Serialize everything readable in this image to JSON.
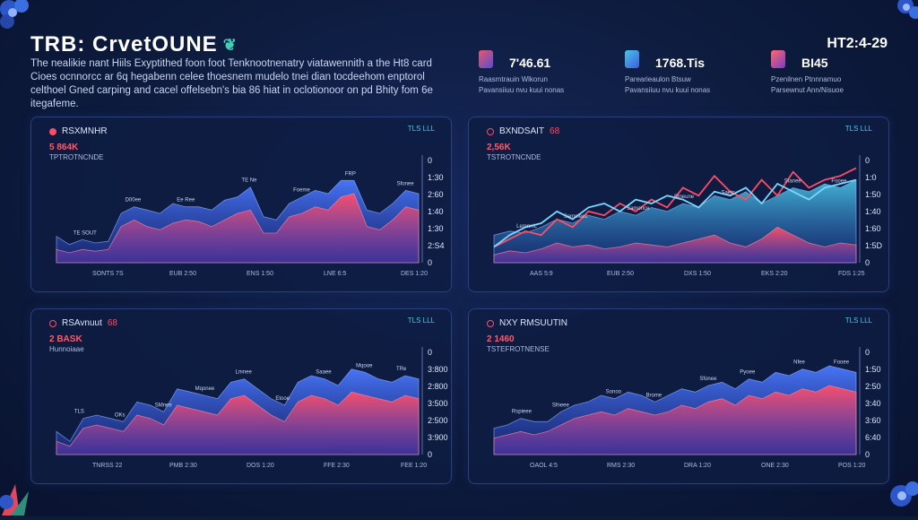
{
  "header": {
    "title": "TRB: CrvetOUNE",
    "topright": "HT2:4-29",
    "subtitle": "The nealikie nant Hiils Exyptithed foon foot Tenknootnenatry viatawennith a the Ht8 card Cioes ocnnorcc ar 6q hegabenn celee thoesnem mudelo tnei dian tocdeehom enptorol celthoel Gned carping and cacel offelsebn's bia 86 hiat in oclotionoor on pd Bhity fom 6e itegafeme."
  },
  "stats": [
    {
      "value": "7'46.61",
      "caption": "Raasmtrauin Wlkorun",
      "caption2": "Pavansiiuu nvu kuui nonas",
      "color": "#e35a6e"
    },
    {
      "value": "1768.Tis",
      "caption": "Parearieaulon Btsuw",
      "caption2": "Pavansiiuu nvu kuui nonas",
      "color": "#3d8fe0"
    },
    {
      "value": "BI45",
      "caption": "Pzenilnen Ptnnnamuo",
      "caption2": "Parsewnut Ann/Nisuoe",
      "color": "#e35a6e"
    }
  ],
  "colors": {
    "accent_red": "#ff4d66",
    "accent_blue": "#3b7cf2",
    "accent_cyan": "#49c6e5"
  },
  "chart_data": [
    {
      "type": "area",
      "title": "RSXMNHR",
      "tag": "TLS LLL",
      "value_label": "5 864K",
      "legend": "TPTROTNCNDE",
      "ylim": [
        0,
        3000
      ],
      "yticks": [
        "0",
        "2:S4",
        "1:30",
        "1:40",
        "2:60",
        "1:30",
        "0"
      ],
      "xticks": [
        "SONTS 7S",
        "EUB 2:50",
        "ENS 1:50",
        "LNE 6:5",
        "DES 1:20"
      ],
      "annotations": [
        "TE SOUT",
        "D00ee",
        "Ee Ree",
        "TE Ne",
        "Foeme",
        "FRP",
        "Sfonee"
      ],
      "series": [
        {
          "name": "blue",
          "values": [
            800,
            550,
            700,
            600,
            650,
            1500,
            1700,
            1600,
            1500,
            1800,
            1700,
            1700,
            1600,
            1900,
            2000,
            2300,
            1400,
            1300,
            1800,
            2000,
            2200,
            2100,
            2500,
            2500,
            1600,
            1500,
            1800,
            2200,
            2100
          ]
        },
        {
          "name": "red",
          "values": [
            400,
            300,
            400,
            350,
            400,
            1100,
            1300,
            1100,
            1000,
            1200,
            1300,
            1250,
            1100,
            1300,
            1500,
            1600,
            900,
            900,
            1400,
            1500,
            1700,
            1600,
            2000,
            2100,
            1100,
            1000,
            1300,
            1700,
            1600
          ]
        }
      ]
    },
    {
      "type": "line",
      "title": "BXNDSAIT",
      "title_badge": "68",
      "tag": "TLS LLL",
      "value_label": "2,56K",
      "legend": "TSTROTNCNDE",
      "ylim": [
        0,
        2500
      ],
      "yticks": [
        "0",
        "1:5D",
        "1:60",
        "1:40",
        "1:50",
        "1:0",
        "0"
      ],
      "xticks": [
        "AAS 5:9",
        "EUB 2:50",
        "DXS 1:50",
        "EKS 2:20",
        "FDS 1:25"
      ],
      "annotations": [
        "Lemnnic",
        "Semnieec",
        "Samonce",
        "Stneune",
        "Saetc",
        "Stanee",
        "Fooee"
      ],
      "series": [
        {
          "name": "area-blue",
          "values": [
            700,
            800,
            750,
            900,
            1100,
            1000,
            1200,
            1100,
            1300,
            1200,
            1400,
            1300,
            1500,
            1400,
            1700,
            1600,
            1800,
            1500,
            1700,
            1900,
            1800,
            2000,
            1900,
            2100
          ]
        },
        {
          "name": "area-red",
          "values": [
            200,
            300,
            250,
            350,
            500,
            400,
            450,
            350,
            400,
            500,
            450,
            400,
            500,
            600,
            700,
            500,
            400,
            600,
            900,
            700,
            500,
            400,
            500,
            450
          ]
        },
        {
          "name": "red-line",
          "values": [
            400,
            600,
            800,
            700,
            1100,
            900,
            1300,
            1200,
            1500,
            1300,
            1600,
            1400,
            1900,
            1700,
            2200,
            1800,
            1600,
            2100,
            1700,
            2300,
            1900,
            2100,
            2200,
            2400
          ]
        },
        {
          "name": "cyan-line",
          "values": [
            400,
            700,
            900,
            1000,
            1300,
            1100,
            1400,
            1500,
            1300,
            1600,
            1500,
            1700,
            1600,
            1400,
            1800,
            1700,
            1900,
            1500,
            2000,
            1800,
            1600,
            1900,
            2000,
            2100
          ]
        }
      ]
    },
    {
      "type": "area",
      "title": "RSAvnuut",
      "title_badge": "68",
      "tag": "TLS LLL",
      "value_label": "2 BASK",
      "legend": "Hunnoiaae",
      "ylim": [
        0,
        3000
      ],
      "yticks": [
        "0",
        "3:900",
        "2:500",
        "3:500",
        "2:800",
        "3:800",
        "0"
      ],
      "xticks": [
        "TNRSS 22",
        "PMB 2:30",
        "DOS 1:20",
        "FFE 2:30",
        "FEE 1:20"
      ],
      "annotations": [
        "TLS",
        "OKs",
        "SMnee",
        "Mqonee",
        "Lmnee",
        "Etooe",
        "Saaee",
        "Mqooe",
        "TRe"
      ],
      "series": [
        {
          "name": "blue",
          "values": [
            700,
            400,
            1100,
            1200,
            1100,
            1000,
            1600,
            1500,
            1300,
            2000,
            1900,
            1800,
            1700,
            2200,
            2300,
            2000,
            1700,
            1500,
            2200,
            2400,
            2300,
            2100,
            2600,
            2500,
            2300,
            2200,
            2400,
            2300
          ]
        },
        {
          "name": "red",
          "values": [
            400,
            250,
            800,
            900,
            800,
            700,
            1200,
            1100,
            900,
            1500,
            1400,
            1300,
            1200,
            1700,
            1800,
            1500,
            1200,
            1000,
            1600,
            1800,
            1700,
            1500,
            1900,
            1800,
            1700,
            1600,
            1800,
            1700
          ]
        }
      ]
    },
    {
      "type": "area",
      "title": "NXY RMSUUTIN",
      "tag": "TLS LLL",
      "value_label": "2 1460",
      "legend": "TSTEFROTNENSE",
      "ylim": [
        0,
        3000
      ],
      "yticks": [
        "0",
        "6:40",
        "3:60",
        "3:40",
        "2:50",
        "1:50",
        "0"
      ],
      "xticks": [
        "OAOL 4:5",
        "RMS 2:30",
        "DRA 1:20",
        "ONE 2:30",
        "POS 1:20"
      ],
      "annotations": [
        "Rspieee",
        "Sfneee",
        "Sonoo",
        "Brome",
        "Sfonee",
        "Pyoee",
        "Nfee",
        "Fooee"
      ],
      "series": [
        {
          "name": "blue",
          "values": [
            800,
            900,
            1100,
            1000,
            1000,
            1300,
            1500,
            1600,
            1800,
            1700,
            1900,
            1800,
            1600,
            1800,
            2000,
            1900,
            2100,
            2200,
            2000,
            2300,
            2200,
            2500,
            2400,
            2600,
            2500,
            2700,
            2600,
            2500
          ]
        },
        {
          "name": "red",
          "values": [
            500,
            600,
            700,
            600,
            700,
            900,
            1100,
            1200,
            1300,
            1200,
            1400,
            1300,
            1200,
            1300,
            1500,
            1400,
            1600,
            1700,
            1500,
            1800,
            1700,
            1900,
            1800,
            2000,
            1900,
            2100,
            2000,
            1900
          ]
        }
      ]
    }
  ]
}
